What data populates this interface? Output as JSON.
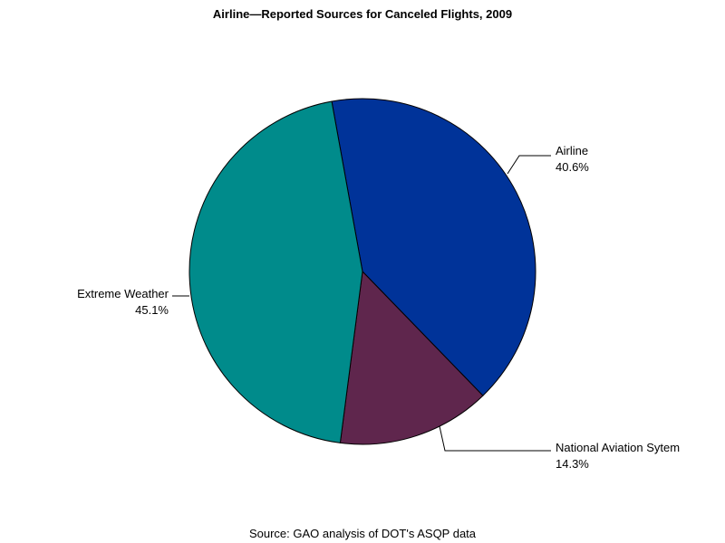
{
  "chart_data": {
    "type": "pie",
    "title": "Airline—Reported Sources for Canceled Flights, 2009",
    "footnote": "Source: GAO analysis of DOT's ASQP data",
    "slices": [
      {
        "label": "Airline",
        "value_label": "40.6%",
        "value": 40.6,
        "color": "#003399"
      },
      {
        "label": "National Aviation Sytem",
        "value_label": "14.3%",
        "value": 14.3,
        "color": "#5f264d"
      },
      {
        "label": "Extreme Weather",
        "value_label": "45.1%",
        "value": 45.1,
        "color": "#008b8b"
      }
    ]
  }
}
